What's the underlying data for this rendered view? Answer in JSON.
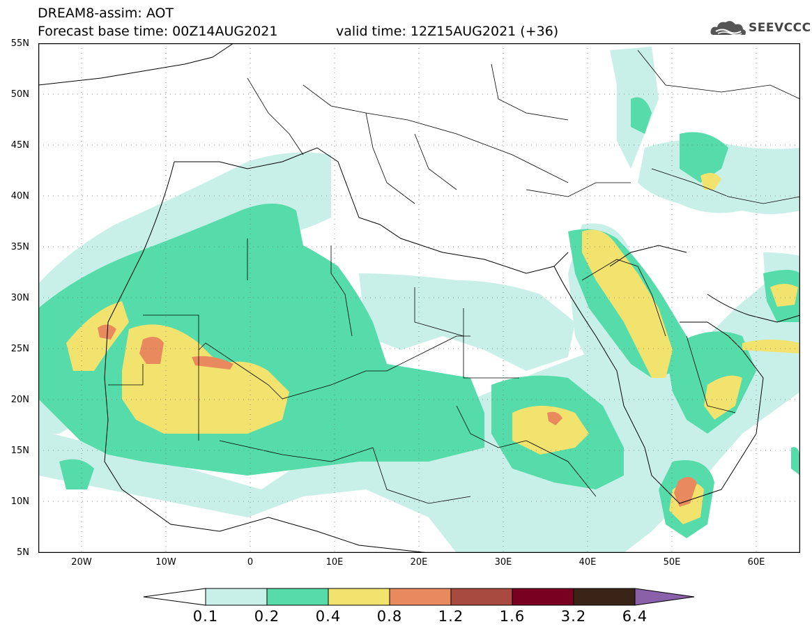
{
  "header": {
    "title_line": "DREAM8-assim: AOT",
    "base_time": "Forecast base time: 00Z14AUG2021",
    "valid_time": "valid time: 12Z15AUG2021 (+36)"
  },
  "logo": {
    "text": "SEEVCCC",
    "icon": "cloud-icon"
  },
  "map": {
    "lat_labels": [
      "55N",
      "50N",
      "45N",
      "40N",
      "35N",
      "30N",
      "25N",
      "20N",
      "15N",
      "10N",
      "5N"
    ],
    "lon_labels": [
      "20W",
      "10W",
      "0",
      "10E",
      "20E",
      "30E",
      "40E",
      "50E",
      "60E"
    ]
  },
  "legend": {
    "levels": [
      "0.1",
      "0.2",
      "0.4",
      "0.8",
      "1.2",
      "1.6",
      "3.2",
      "6.4"
    ],
    "colors": [
      "#ffffff",
      "#c8f0e8",
      "#55dcaa",
      "#f2e26e",
      "#e88a5e",
      "#a84a40",
      "#7a0022",
      "#3a2418",
      "#8a60a8"
    ]
  },
  "colors": {
    "aot_0_1": "#c8f0e8",
    "aot_0_2": "#55dcaa",
    "aot_0_4": "#f2e26e",
    "aot_0_8": "#e88a5e",
    "aot_1_2": "#a84a40"
  }
}
